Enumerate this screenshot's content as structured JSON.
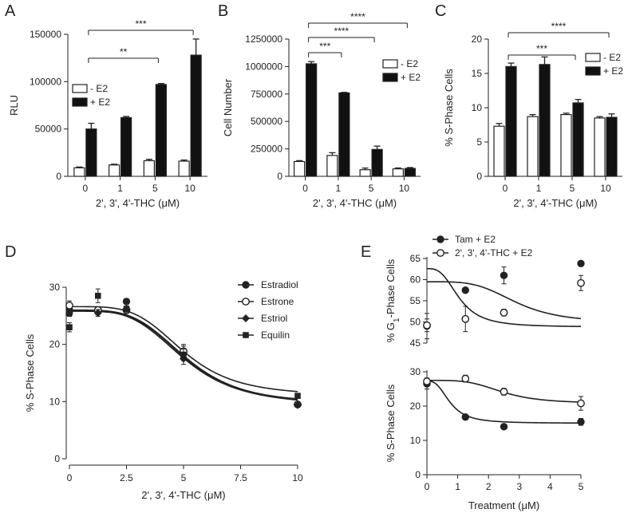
{
  "chart_data": [
    {
      "panel": "A",
      "type": "bar",
      "ylabel": "RLU",
      "xlabel": "2', 3', 4'-THC (μM)",
      "categories": [
        "0",
        "1",
        "5",
        "10"
      ],
      "ylim": [
        0,
        150000
      ],
      "yticks": [
        "0",
        "50000",
        "100000",
        "150000"
      ],
      "series": [
        {
          "name": "- E2",
          "values": [
            9000,
            12000,
            16500,
            16000
          ],
          "errors": [
            800,
            800,
            1500,
            1200
          ],
          "color": "#ffffff"
        },
        {
          "name": "+ E2",
          "values": [
            50000,
            62000,
            97000,
            128000
          ],
          "errors": [
            6000,
            1200,
            1000,
            17000
          ],
          "color": "#111111"
        }
      ],
      "legend": "top-left",
      "significance": [
        {
          "from": "0",
          "to": "10",
          "label": "***"
        },
        {
          "from": "0",
          "to": "5",
          "label": "**"
        }
      ]
    },
    {
      "panel": "B",
      "type": "bar",
      "ylabel": "Cell Number",
      "xlabel": "2', 3', 4'-THC (μM)",
      "categories": [
        "0",
        "1",
        "5",
        "10"
      ],
      "ylim": [
        0,
        1250000
      ],
      "yticks": [
        "0",
        "250000",
        "500000",
        "750000",
        "1000000",
        "1250000"
      ],
      "series": [
        {
          "name": "- E2",
          "values": [
            135000,
            190000,
            60000,
            68000
          ],
          "errors": [
            8000,
            25000,
            15000,
            8000
          ],
          "color": "#ffffff"
        },
        {
          "name": "+ E2",
          "values": [
            1025000,
            760000,
            245000,
            72000
          ],
          "errors": [
            20000,
            5000,
            30000,
            8000
          ],
          "color": "#111111"
        }
      ],
      "legend": "top-right",
      "significance": [
        {
          "from": "0",
          "to": "10",
          "label": "****"
        },
        {
          "from": "0",
          "to": "5",
          "label": "****"
        },
        {
          "from": "0",
          "to": "1",
          "label": "***"
        }
      ]
    },
    {
      "panel": "C",
      "type": "bar",
      "ylabel": "% S-Phase Cells",
      "xlabel": "2', 3', 4'-THC (μM)",
      "categories": [
        "0",
        "1",
        "5",
        "10"
      ],
      "ylim": [
        0,
        20
      ],
      "yticks": [
        "0",
        "5",
        "10",
        "15",
        "20"
      ],
      "series": [
        {
          "name": "- E2",
          "values": [
            7.3,
            8.7,
            9.0,
            8.5
          ],
          "errors": [
            0.4,
            0.3,
            0.2,
            0.2
          ],
          "color": "#ffffff"
        },
        {
          "name": "+ E2",
          "values": [
            16.0,
            16.3,
            10.7,
            8.6
          ],
          "errors": [
            0.5,
            1.1,
            0.5,
            0.5
          ],
          "color": "#111111"
        }
      ],
      "legend": "top-right",
      "significance": [
        {
          "from": "0",
          "to": "10",
          "label": "****"
        },
        {
          "from": "0",
          "to": "5",
          "label": "***"
        }
      ]
    },
    {
      "panel": "D",
      "type": "scatter",
      "ylabel": "% S-Phase Cells",
      "xlabel": "2', 3', 4'-THC (μM)",
      "xlim": [
        0,
        10
      ],
      "ylim": [
        0,
        30
      ],
      "xticks": [
        "0",
        "2.5",
        "5",
        "7.5",
        "10"
      ],
      "yticks": [
        "0",
        "10",
        "20",
        "30"
      ],
      "legend": "top-right",
      "series": [
        {
          "name": "Estradiol",
          "marker": "circle-filled",
          "x": [
            0,
            1.25,
            2.5,
            5,
            10
          ],
          "y": [
            26.0,
            25.8,
            27.5,
            18.5,
            9.5
          ],
          "errors": [
            0.8,
            0.6,
            0.5,
            1.2,
            0.4
          ],
          "fit": {
            "top": 25.9,
            "bottom": 9.3,
            "ec50": 5.0,
            "hill": 4.0
          }
        },
        {
          "name": "Estrone",
          "marker": "circle-open",
          "x": [
            0,
            1.25,
            2.5,
            5,
            10
          ],
          "y": [
            26.8,
            26.0,
            26.0,
            18.8,
            9.5
          ],
          "errors": [
            0.8,
            0.6,
            0.6,
            1.2,
            0.4
          ],
          "fit": {
            "top": 26.6,
            "bottom": 11.0,
            "ec50": 5.0,
            "hill": 4.3
          }
        },
        {
          "name": "Estriol",
          "marker": "diamond",
          "x": [
            0,
            1.25,
            2.5,
            5,
            10
          ],
          "y": [
            25.5,
            25.5,
            26.2,
            17.5,
            9.4
          ],
          "errors": [
            0.6,
            0.6,
            0.5,
            1.0,
            0.4
          ],
          "fit": {
            "top": 25.8,
            "bottom": 9.6,
            "ec50": 5.05,
            "hill": 4.2
          }
        },
        {
          "name": "Equilin",
          "marker": "square",
          "x": [
            0,
            0,
            1.25,
            2.5,
            5,
            10
          ],
          "y": [
            23.0,
            25.5,
            28.5,
            26.2,
            18.2,
            11.0
          ],
          "errors": [
            0.8,
            0.6,
            1.2,
            0.5,
            1.0,
            0.4
          ],
          "fit": {
            "top": 26.0,
            "bottom": 9.4,
            "ec50": 5.1,
            "hill": 4.1
          }
        }
      ]
    },
    {
      "panel": "E",
      "type": "scatter",
      "xlabel": "Treatment (μM)",
      "xlim": [
        0,
        5
      ],
      "xticks": [
        "0",
        "1",
        "2",
        "3",
        "4",
        "5"
      ],
      "legend": "top-left",
      "legend_entries": [
        {
          "name": "Tam + E2",
          "marker": "circle-filled"
        },
        {
          "name": "2', 3', 4'-THC + E2",
          "marker": "circle-open"
        }
      ],
      "subplots": [
        {
          "ylabel_pre": "% G",
          "ylabel_sub": "1",
          "ylabel_post": "-Phase Cells",
          "ylim": [
            45,
            65
          ],
          "yticks": [
            "45",
            "50",
            "55",
            "60",
            "65"
          ],
          "series": [
            {
              "name": "Tam + E2",
              "marker": "circle-filled",
              "x": [
                0,
                1.25,
                2.5,
                5
              ],
              "y": [
                49.0,
                57.5,
                61.0,
                63.8
              ],
              "errors": [
                3.0,
                0.4,
                2.0,
                0.6
              ],
              "fit": {
                "bottom": 48.8,
                "top": 62.6,
                "ec50": 1.05,
                "hill": 3.0
              }
            },
            {
              "name": "2', 3', 4'-THC + E2",
              "marker": "circle-open",
              "x": [
                0,
                1.25,
                2.5,
                5
              ],
              "y": [
                49.2,
                50.7,
                52.2,
                59.2
              ],
              "errors": [
                1.5,
                3.0,
                0.8,
                1.8
              ],
              "fit": {
                "bottom": 49.8,
                "top": 59.5,
                "ec50": 2.9,
                "hill": 4.0
              }
            }
          ]
        },
        {
          "ylabel": "% S-Phase Cells",
          "ylim": [
            0,
            30
          ],
          "yticks": [
            "0",
            "10",
            "20",
            "30"
          ],
          "series": [
            {
              "name": "Tam + E2",
              "marker": "circle-filled",
              "x": [
                0,
                1.25,
                2.5,
                5
              ],
              "y": [
                26.5,
                16.8,
                14.0,
                15.4
              ],
              "errors": [
                1.5,
                0.6,
                0.5,
                1.0
              ],
              "fit": {
                "top": 27.3,
                "bottom": 15.0,
                "ec50": 0.75,
                "hill": 2.8
              }
            },
            {
              "name": "2', 3', 4'-THC + E2",
              "marker": "circle-open",
              "x": [
                0,
                1.25,
                2.5,
                5
              ],
              "y": [
                27.2,
                28.0,
                24.2,
                20.8
              ],
              "errors": [
                1.0,
                1.0,
                1.0,
                2.0
              ],
              "fit": {
                "top": 27.5,
                "bottom": 20.8,
                "ec50": 2.45,
                "hill": 4.0
              }
            }
          ]
        }
      ]
    }
  ]
}
